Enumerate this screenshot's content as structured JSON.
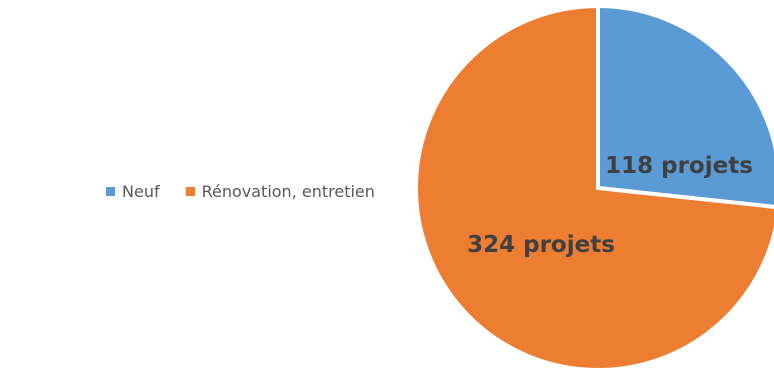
{
  "chart_data": {
    "type": "pie",
    "title": "",
    "categories": [
      "Neuf",
      "Rénovation, entretien"
    ],
    "values": [
      118,
      324
    ],
    "colors": [
      "#5b9bd5",
      "#ed7d31"
    ],
    "labels": [
      "118 projets",
      "324 projets"
    ],
    "legend_position": "left",
    "start_angle_deg": 0,
    "direction": "clockwise"
  }
}
